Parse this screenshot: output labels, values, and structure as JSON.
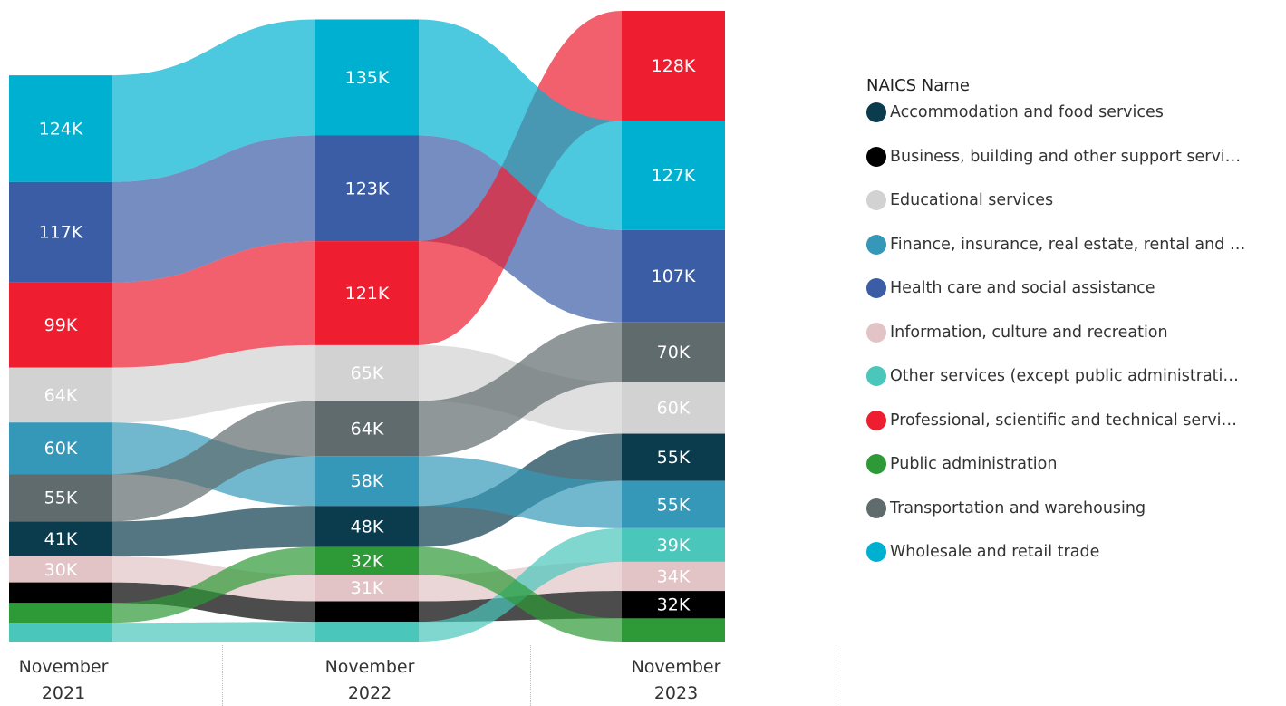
{
  "chart_data": {
    "type": "ribbon",
    "categories": [
      "November 2021",
      "November 2022",
      "November 2023"
    ],
    "legend_title": "NAICS Name",
    "series": [
      {
        "name": "Accommodation and food services",
        "color": "#0b3c4e",
        "values": [
          41000,
          48000,
          55000
        ],
        "value_labels": [
          "41K",
          "48K",
          "55K"
        ]
      },
      {
        "name": "Business, building and other support servi…",
        "color": "#000000",
        "values": [
          24000,
          24000,
          32000
        ],
        "value_labels": [
          null,
          null,
          "32K"
        ]
      },
      {
        "name": "Educational services",
        "color": "#d2d2d2",
        "values": [
          64000,
          65000,
          60000
        ],
        "value_labels": [
          "64K",
          "65K",
          "60K"
        ]
      },
      {
        "name": "Finance, insurance, real estate, rental and …",
        "color": "#3598b8",
        "values": [
          60000,
          58000,
          55000
        ],
        "value_labels": [
          "60K",
          "58K",
          "55K"
        ]
      },
      {
        "name": "Health care and social assistance",
        "color": "#3a5da5",
        "values": [
          117000,
          123000,
          107000
        ],
        "value_labels": [
          "117K",
          "123K",
          "107K"
        ]
      },
      {
        "name": "Information, culture and recreation",
        "color": "#e3c4c6",
        "values": [
          30000,
          31000,
          34000
        ],
        "value_labels": [
          "30K",
          "31K",
          "34K"
        ]
      },
      {
        "name": "Other services (except public administrati…",
        "color": "#4ac6bb",
        "values": [
          22000,
          23000,
          39000
        ],
        "value_labels": [
          null,
          null,
          "39K"
        ]
      },
      {
        "name": "Professional, scientific and technical servi…",
        "color": "#ee1d2f",
        "values": [
          99000,
          121000,
          128000
        ],
        "value_labels": [
          "99K",
          "121K",
          "128K"
        ]
      },
      {
        "name": "Public administration",
        "color": "#2e9a37",
        "values": [
          23000,
          32000,
          27000
        ],
        "value_labels": [
          null,
          "32K",
          null
        ]
      },
      {
        "name": "Transportation and warehousing",
        "color": "#5f6b6d",
        "values": [
          55000,
          64000,
          70000
        ],
        "value_labels": [
          "55K",
          "64K",
          "70K"
        ]
      },
      {
        "name": "Wholesale and retail trade",
        "color": "#00b0d1",
        "values": [
          124000,
          135000,
          127000
        ],
        "value_labels": [
          "124K",
          "135K",
          "127K"
        ]
      }
    ],
    "legend": "right"
  }
}
